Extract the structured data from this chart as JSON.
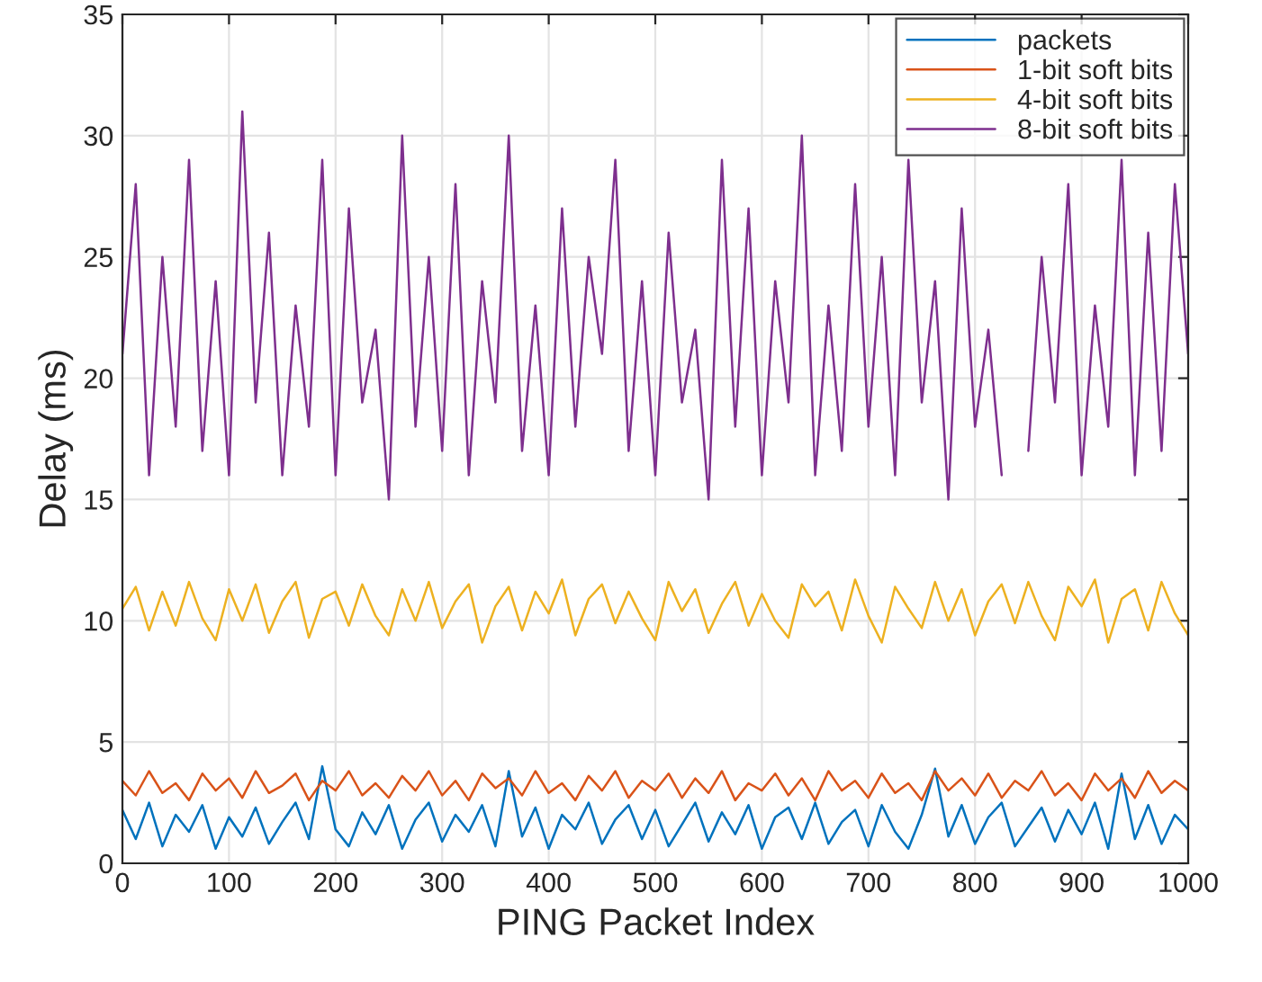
{
  "chart_data": {
    "type": "line",
    "xlabel": "PING Packet Index",
    "ylabel": "Delay (ms)",
    "x": [
      0,
      12.5,
      25,
      37.5,
      50,
      62.5,
      75,
      87.5,
      100,
      112.5,
      125,
      137.5,
      150,
      162.5,
      175,
      187.5,
      200,
      212.5,
      225,
      237.5,
      250,
      262.5,
      275,
      287.5,
      300,
      312.5,
      325,
      337.5,
      350,
      362.5,
      375,
      387.5,
      400,
      412.5,
      425,
      437.5,
      450,
      462.5,
      475,
      487.5,
      500,
      512.5,
      525,
      537.5,
      550,
      562.5,
      575,
      587.5,
      600,
      612.5,
      625,
      637.5,
      650,
      662.5,
      675,
      687.5,
      700,
      712.5,
      725,
      737.5,
      750,
      762.5,
      775,
      787.5,
      800,
      812.5,
      825,
      837.5,
      850,
      862.5,
      875,
      887.5,
      900,
      912.5,
      925,
      937.5,
      950,
      962.5,
      975,
      987.5,
      1000
    ],
    "series": [
      {
        "name": "packets",
        "color": "#0072bd",
        "values": [
          2.2,
          1.0,
          2.5,
          0.7,
          2.0,
          1.3,
          2.4,
          0.6,
          1.9,
          1.1,
          2.3,
          0.8,
          1.7,
          2.5,
          1.0,
          4.0,
          1.4,
          0.7,
          2.1,
          1.2,
          2.4,
          0.6,
          1.8,
          2.5,
          0.9,
          2.0,
          1.3,
          2.4,
          0.7,
          3.8,
          1.1,
          2.3,
          0.6,
          2.0,
          1.4,
          2.5,
          0.8,
          1.8,
          2.4,
          1.0,
          2.2,
          0.7,
          1.6,
          2.5,
          0.9,
          2.1,
          1.2,
          2.4,
          0.6,
          1.9,
          2.3,
          1.0,
          2.5,
          0.8,
          1.7,
          2.2,
          0.7,
          2.4,
          1.3,
          0.6,
          2.0,
          3.9,
          1.1,
          2.4,
          0.8,
          1.9,
          2.5,
          0.7,
          1.5,
          2.3,
          0.9,
          2.2,
          1.2,
          2.5,
          0.6,
          3.7,
          1.0,
          2.4,
          0.8,
          2.0,
          1.4
        ]
      },
      {
        "name": "1-bit soft bits",
        "color": "#d95319",
        "values": [
          3.4,
          2.8,
          3.8,
          2.9,
          3.3,
          2.6,
          3.7,
          3.0,
          3.5,
          2.7,
          3.8,
          2.9,
          3.2,
          3.7,
          2.6,
          3.4,
          3.0,
          3.8,
          2.8,
          3.3,
          2.7,
          3.6,
          3.0,
          3.8,
          2.8,
          3.4,
          2.6,
          3.7,
          3.1,
          3.5,
          2.8,
          3.8,
          2.9,
          3.3,
          2.6,
          3.6,
          3.0,
          3.8,
          2.7,
          3.4,
          3.0,
          3.7,
          2.7,
          3.5,
          2.9,
          3.8,
          2.6,
          3.3,
          3.0,
          3.7,
          2.8,
          3.5,
          2.6,
          3.8,
          3.0,
          3.4,
          2.7,
          3.7,
          2.9,
          3.3,
          2.6,
          3.8,
          3.0,
          3.5,
          2.8,
          3.7,
          2.7,
          3.4,
          3.0,
          3.8,
          2.8,
          3.3,
          2.6,
          3.7,
          3.0,
          3.5,
          2.7,
          3.8,
          2.9,
          3.4,
          3.0
        ]
      },
      {
        "name": "4-bit soft bits",
        "color": "#edb120",
        "values": [
          10.5,
          11.4,
          9.6,
          11.2,
          9.8,
          11.6,
          10.1,
          9.2,
          11.3,
          10.0,
          11.5,
          9.5,
          10.8,
          11.6,
          9.3,
          10.9,
          11.2,
          9.8,
          11.5,
          10.2,
          9.4,
          11.3,
          10.0,
          11.6,
          9.7,
          10.8,
          11.5,
          9.1,
          10.6,
          11.4,
          9.6,
          11.2,
          10.3,
          11.7,
          9.4,
          10.9,
          11.5,
          9.9,
          11.2,
          10.1,
          9.2,
          11.6,
          10.4,
          11.3,
          9.5,
          10.7,
          11.6,
          9.8,
          11.1,
          10.0,
          9.3,
          11.5,
          10.6,
          11.2,
          9.6,
          11.7,
          10.2,
          9.1,
          11.4,
          10.5,
          9.7,
          11.6,
          10.0,
          11.3,
          9.4,
          10.8,
          11.5,
          9.9,
          11.6,
          10.2,
          9.2,
          11.4,
          10.6,
          11.7,
          9.1,
          10.9,
          11.3,
          9.6,
          11.6,
          10.3,
          9.4
        ]
      },
      {
        "name": "8-bit soft bits",
        "color": "#7e2f8e",
        "values": [
          21,
          28,
          16,
          25,
          18,
          29,
          17,
          24,
          16,
          31,
          19,
          26,
          16,
          23,
          18,
          29,
          16,
          27,
          19,
          22,
          15,
          30,
          18,
          25,
          17,
          28,
          16,
          24,
          19,
          30,
          17,
          23,
          16,
          27,
          18,
          25,
          21,
          29,
          17,
          24,
          16,
          26,
          19,
          22,
          15,
          29,
          18,
          27,
          16,
          24,
          19,
          30,
          16,
          23,
          17,
          28,
          18,
          25,
          16,
          29,
          19,
          24,
          15,
          27,
          18,
          22,
          16,
          null,
          17,
          25,
          19,
          28,
          16,
          23,
          18,
          29,
          16,
          26,
          17,
          28,
          21
        ]
      }
    ],
    "xlim": [
      0,
      1000
    ],
    "xticks": [
      0,
      100,
      200,
      300,
      400,
      500,
      600,
      700,
      800,
      900,
      1000
    ],
    "ylim": [
      0,
      35
    ],
    "yticks": [
      0,
      5,
      10,
      15,
      20,
      25,
      30,
      35
    ],
    "grid": true,
    "legend": "top right",
    "marker": "none",
    "line_style": "solid"
  }
}
